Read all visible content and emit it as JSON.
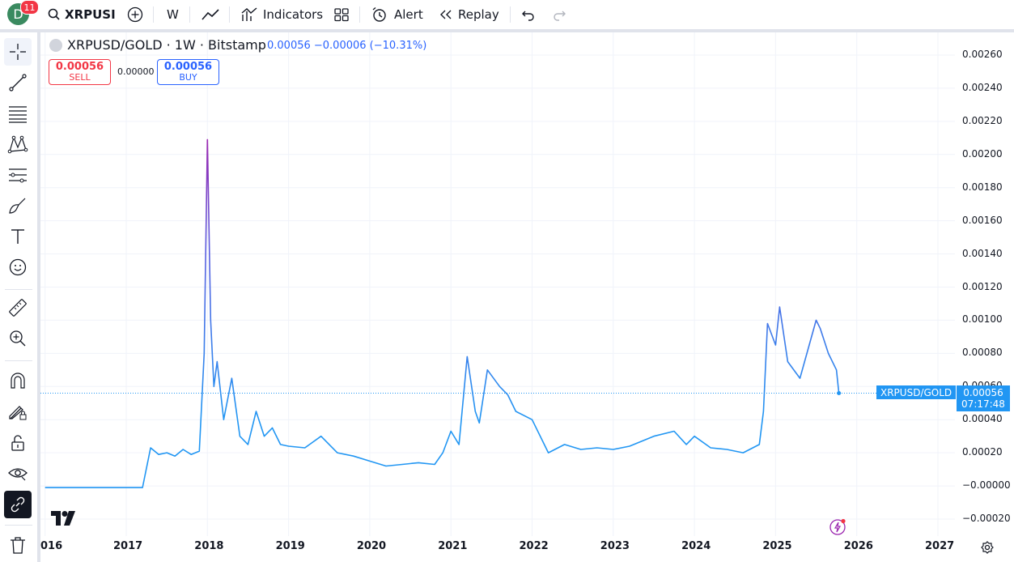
{
  "header": {
    "avatar_letter": "D",
    "notifications": "11",
    "symbol": "XRPUSI",
    "interval": "W",
    "indicators_label": "Indicators",
    "alert_label": "Alert",
    "replay_label": "Replay"
  },
  "legend": {
    "title": "XRPUSD/GOLD · 1W · Bitstamp",
    "values": "0.00056 −0.00006 (−10.31%)"
  },
  "trade": {
    "sell_price": "0.00056",
    "sell_label": "SELL",
    "spread": "0.00000",
    "buy_price": "0.00056",
    "buy_label": "BUY"
  },
  "price_axis": {
    "ticks": [
      "0.00260",
      "0.00240",
      "0.00220",
      "0.00200",
      "0.00180",
      "0.00160",
      "0.00140",
      "0.00120",
      "0.00100",
      "0.00080",
      "0.00060",
      "0.00040",
      "0.00020",
      "−0.00000",
      "−0.00020"
    ]
  },
  "time_axis": {
    "ticks": [
      "016",
      "2017",
      "2018",
      "2019",
      "2020",
      "2021",
      "2022",
      "2023",
      "2024",
      "2025",
      "2026",
      "2027"
    ]
  },
  "last": {
    "series_name": "XRPUSD/GOLD",
    "price": "0.00056",
    "countdown": "07:17:48"
  },
  "colors": {
    "line": "#2196f3",
    "spike": "#9c27b0",
    "accent": "#2962ff",
    "sell": "#f23645"
  },
  "chart_data": {
    "type": "line",
    "ylim": [
      -0.0002,
      0.0026
    ],
    "series": [
      {
        "x": [
          2016.0,
          2016.5,
          2017.0,
          2017.2,
          2017.3,
          2017.4,
          2017.5,
          2017.6,
          2017.7,
          2017.8,
          2017.9,
          2017.96,
          2018.0,
          2018.04,
          2018.08,
          2018.12,
          2018.2,
          2018.3,
          2018.4,
          2018.5,
          2018.6,
          2018.7,
          2018.8,
          2018.9,
          2019.0,
          2019.2,
          2019.4,
          2019.6,
          2019.8,
          2020.0,
          2020.2,
          2020.4,
          2020.6,
          2020.8,
          2020.9,
          2021.0,
          2021.1,
          2021.2,
          2021.3,
          2021.35,
          2021.45,
          2021.6,
          2021.7,
          2021.8,
          2022.0,
          2022.2,
          2022.4,
          2022.6,
          2022.8,
          2023.0,
          2023.2,
          2023.5,
          2023.75,
          2023.9,
          2024.0,
          2024.2,
          2024.4,
          2024.6,
          2024.8,
          2024.85,
          2024.9,
          2025.0,
          2025.05,
          2025.15,
          2025.3,
          2025.5,
          2025.55,
          2025.65,
          2025.75,
          2025.78
        ],
        "y": [
          -1e-05,
          -1e-05,
          -1e-05,
          -1e-05,
          0.00023,
          0.00019,
          0.0002,
          0.00018,
          0.00022,
          0.00019,
          0.00021,
          0.0008,
          0.00209,
          0.001,
          0.0006,
          0.00075,
          0.0004,
          0.00065,
          0.0003,
          0.00025,
          0.00045,
          0.0003,
          0.00035,
          0.00025,
          0.00024,
          0.00023,
          0.0003,
          0.0002,
          0.00018,
          0.00015,
          0.00012,
          0.00013,
          0.00014,
          0.00013,
          0.0002,
          0.00033,
          0.00025,
          0.00078,
          0.00045,
          0.00038,
          0.0007,
          0.0006,
          0.00055,
          0.00045,
          0.0004,
          0.0002,
          0.00025,
          0.00022,
          0.00023,
          0.00022,
          0.00024,
          0.0003,
          0.00033,
          0.00025,
          0.0003,
          0.00023,
          0.00022,
          0.0002,
          0.00025,
          0.00045,
          0.00098,
          0.00085,
          0.00108,
          0.00075,
          0.00065,
          0.001,
          0.00095,
          0.0008,
          0.0007,
          0.00056
        ]
      }
    ]
  }
}
